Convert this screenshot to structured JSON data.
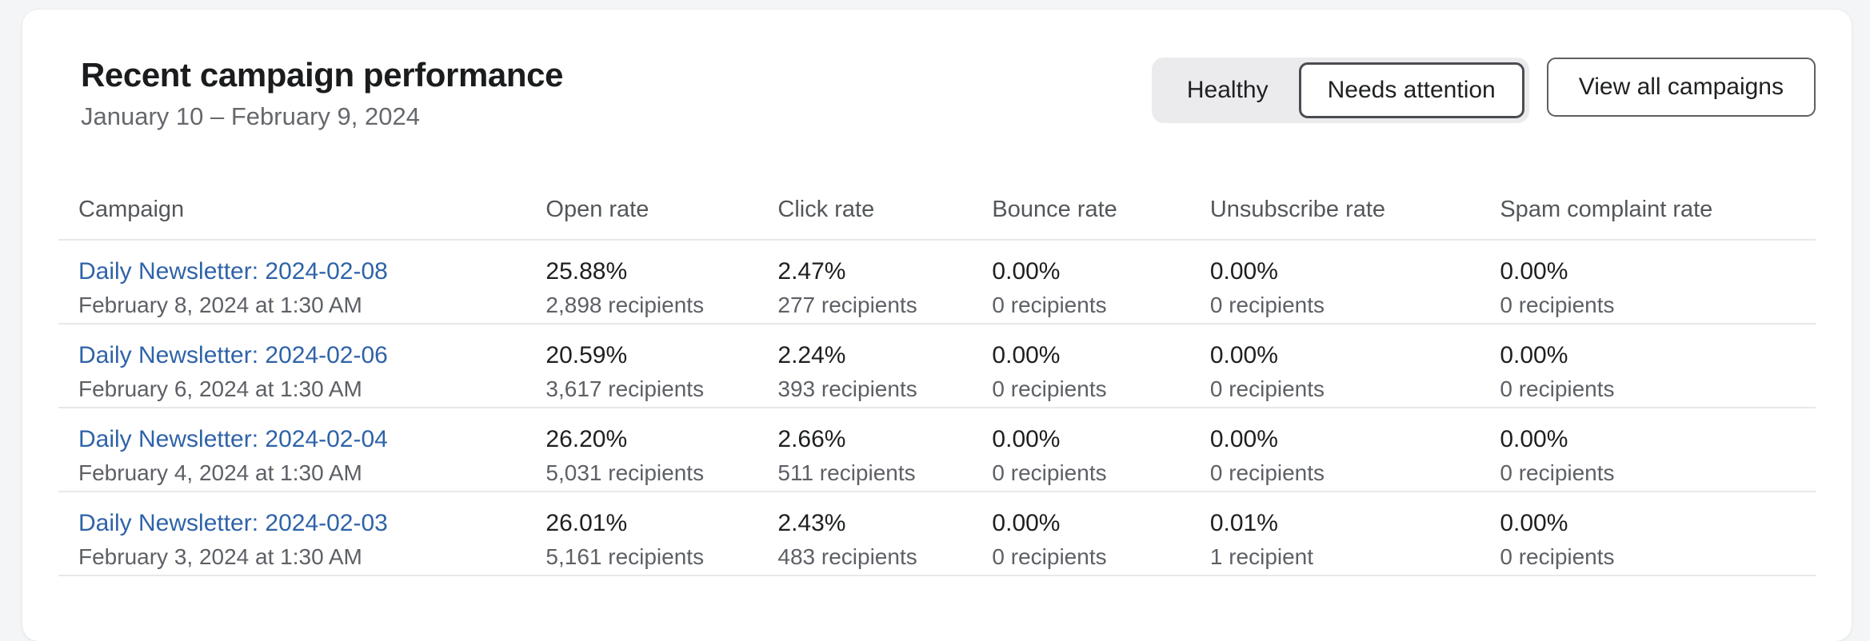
{
  "header": {
    "title": "Recent campaign performance",
    "date_range": "January 10 – February 9, 2024",
    "filters": [
      {
        "label": "Healthy",
        "selected": false
      },
      {
        "label": "Needs attention",
        "selected": true
      }
    ],
    "view_all_label": "View all campaigns"
  },
  "table": {
    "columns": [
      "Campaign",
      "Open rate",
      "Click rate",
      "Bounce rate",
      "Unsubscribe rate",
      "Spam complaint rate"
    ],
    "rows": [
      {
        "name": "Daily Newsletter: 2024-02-08",
        "sent": "February 8, 2024 at 1:30 AM",
        "open_rate": "25.88%",
        "open_recipients": "2,898 recipients",
        "click_rate": "2.47%",
        "click_recipients": "277 recipients",
        "bounce_rate": "0.00%",
        "bounce_recipients": "0 recipients",
        "unsubscribe_rate": "0.00%",
        "unsubscribe_recipients": "0 recipients",
        "spam_rate": "0.00%",
        "spam_recipients": "0 recipients"
      },
      {
        "name": "Daily Newsletter: 2024-02-06",
        "sent": "February 6, 2024 at 1:30 AM",
        "open_rate": "20.59%",
        "open_recipients": "3,617 recipients",
        "click_rate": "2.24%",
        "click_recipients": "393 recipients",
        "bounce_rate": "0.00%",
        "bounce_recipients": "0 recipients",
        "unsubscribe_rate": "0.00%",
        "unsubscribe_recipients": "0 recipients",
        "spam_rate": "0.00%",
        "spam_recipients": "0 recipients"
      },
      {
        "name": "Daily Newsletter: 2024-02-04",
        "sent": "February 4, 2024 at 1:30 AM",
        "open_rate": "26.20%",
        "open_recipients": "5,031 recipients",
        "click_rate": "2.66%",
        "click_recipients": "511 recipients",
        "bounce_rate": "0.00%",
        "bounce_recipients": "0 recipients",
        "unsubscribe_rate": "0.00%",
        "unsubscribe_recipients": "0 recipients",
        "spam_rate": "0.00%",
        "spam_recipients": "0 recipients"
      },
      {
        "name": "Daily Newsletter: 2024-02-03",
        "sent": "February 3, 2024 at 1:30 AM",
        "open_rate": "26.01%",
        "open_recipients": "5,161 recipients",
        "click_rate": "2.43%",
        "click_recipients": "483 recipients",
        "bounce_rate": "0.00%",
        "bounce_recipients": "0 recipients",
        "unsubscribe_rate": "0.01%",
        "unsubscribe_recipients": "1 recipient",
        "spam_rate": "0.00%",
        "spam_recipients": "0 recipients"
      }
    ]
  },
  "colors": {
    "link": "#2f63a8",
    "page_background": "#f4f5f6",
    "card_background": "#ffffff",
    "divider": "#e7e8ea",
    "selected_filter_border": "#4a4d50"
  }
}
